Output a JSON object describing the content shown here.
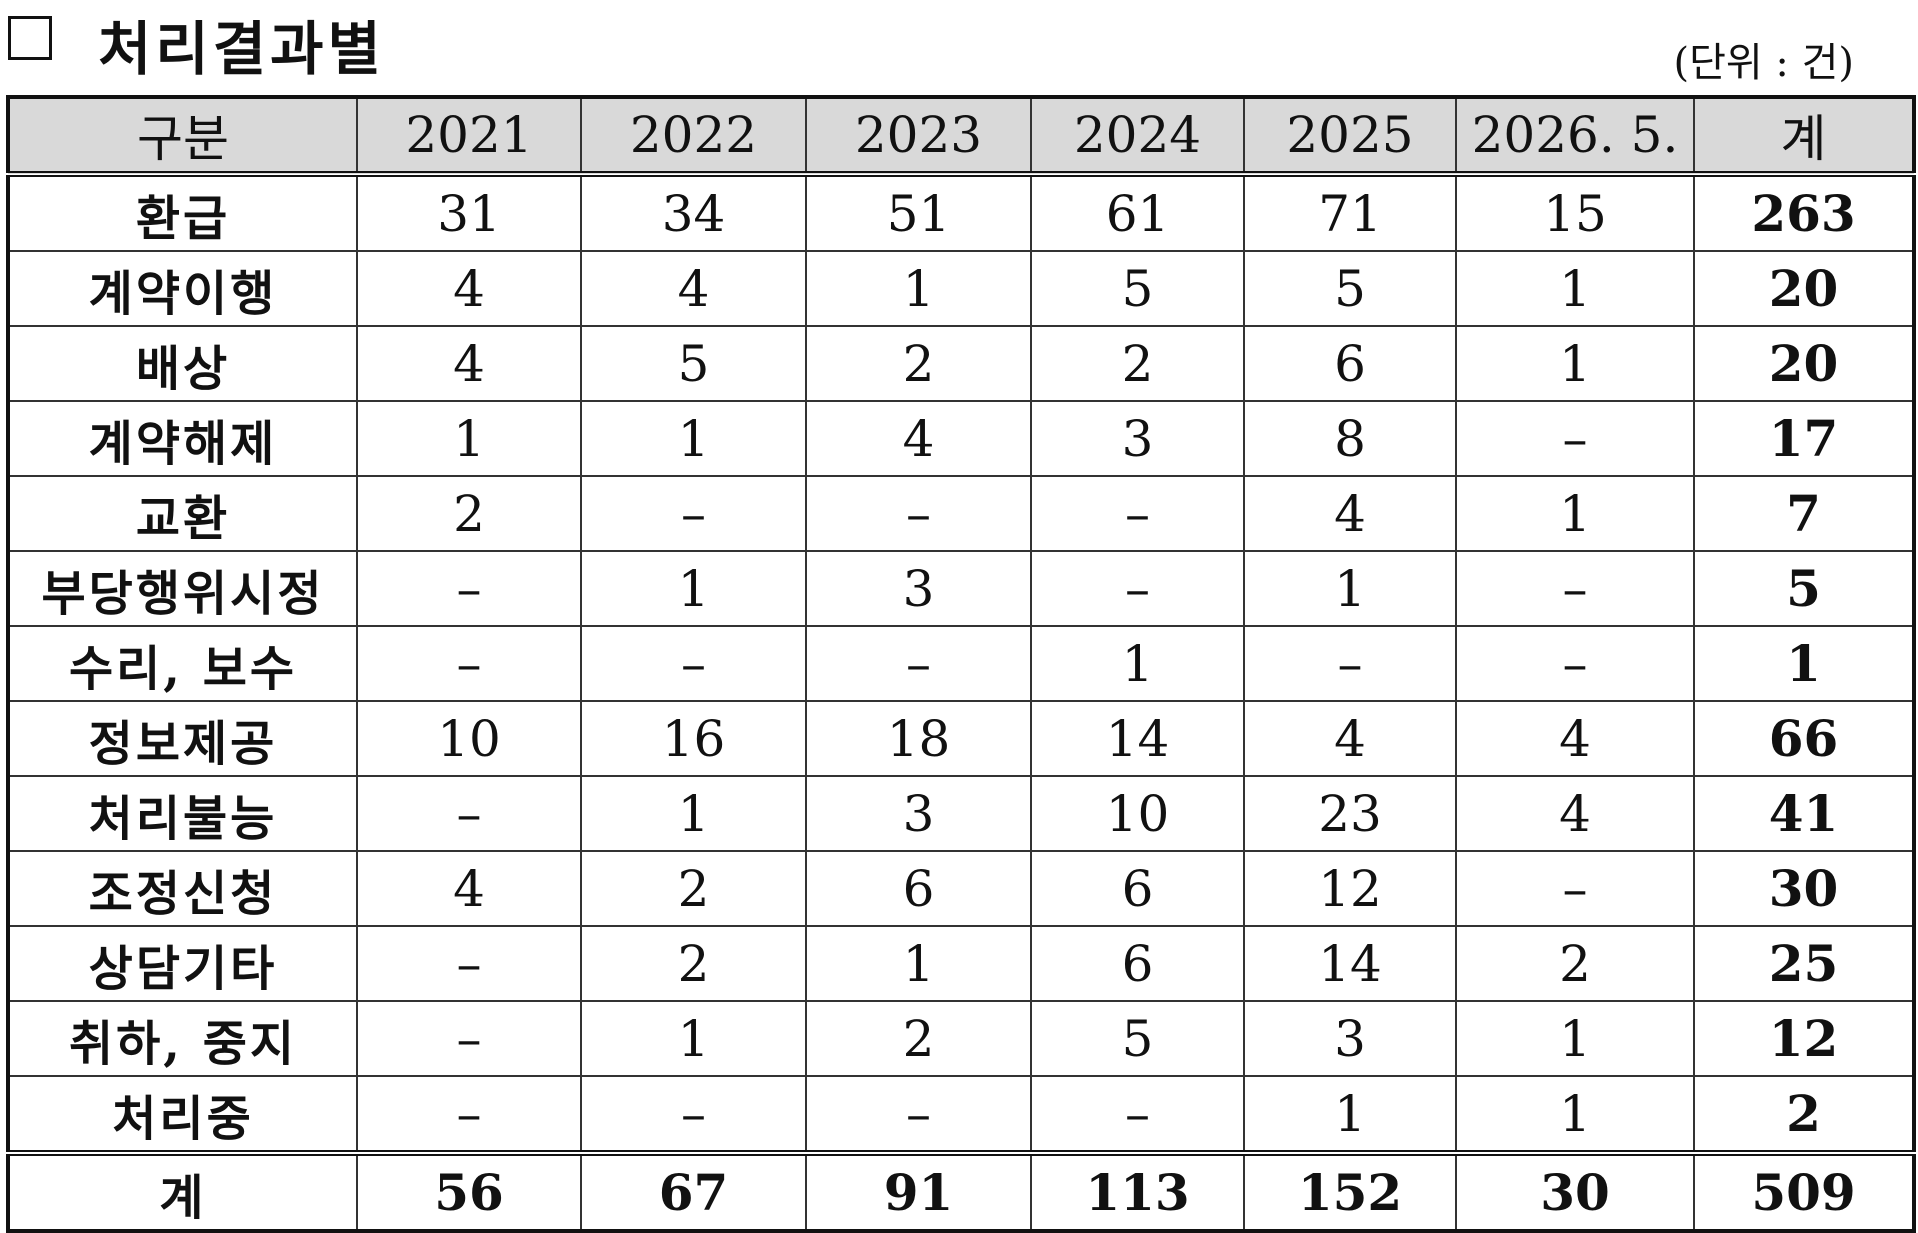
{
  "header": {
    "title": "처리결과별",
    "unit": "(단위 : 건)"
  },
  "table": {
    "columns": [
      "구분",
      "2021",
      "2022",
      "2023",
      "2024",
      "2025",
      "2026. 5.",
      "계"
    ],
    "rows": [
      [
        "환급",
        31,
        34,
        51,
        61,
        71,
        15,
        263
      ],
      [
        "계약이행",
        4,
        4,
        1,
        5,
        5,
        1,
        20
      ],
      [
        "배상",
        4,
        5,
        2,
        2,
        6,
        1,
        20
      ],
      [
        "계약해제",
        1,
        1,
        4,
        3,
        8,
        "–",
        17
      ],
      [
        "교환",
        2,
        "–",
        "–",
        "–",
        4,
        1,
        7
      ],
      [
        "부당행위시정",
        "–",
        1,
        3,
        "–",
        1,
        "–",
        5
      ],
      [
        "수리, 보수",
        "–",
        "–",
        "–",
        1,
        "–",
        "–",
        1
      ],
      [
        "정보제공",
        10,
        16,
        18,
        14,
        4,
        4,
        66
      ],
      [
        "처리불능",
        "–",
        1,
        3,
        10,
        23,
        4,
        41
      ],
      [
        "조정신청",
        4,
        2,
        6,
        6,
        12,
        "–",
        30
      ],
      [
        "상담기타",
        "–",
        2,
        1,
        6,
        14,
        2,
        25
      ],
      [
        "취하, 중지",
        "–",
        1,
        2,
        5,
        3,
        1,
        12
      ],
      [
        "처리중",
        "–",
        "–",
        "–",
        "–",
        1,
        1,
        2
      ]
    ],
    "total": [
      "계",
      56,
      67,
      91,
      113,
      152,
      30,
      509
    ]
  }
}
